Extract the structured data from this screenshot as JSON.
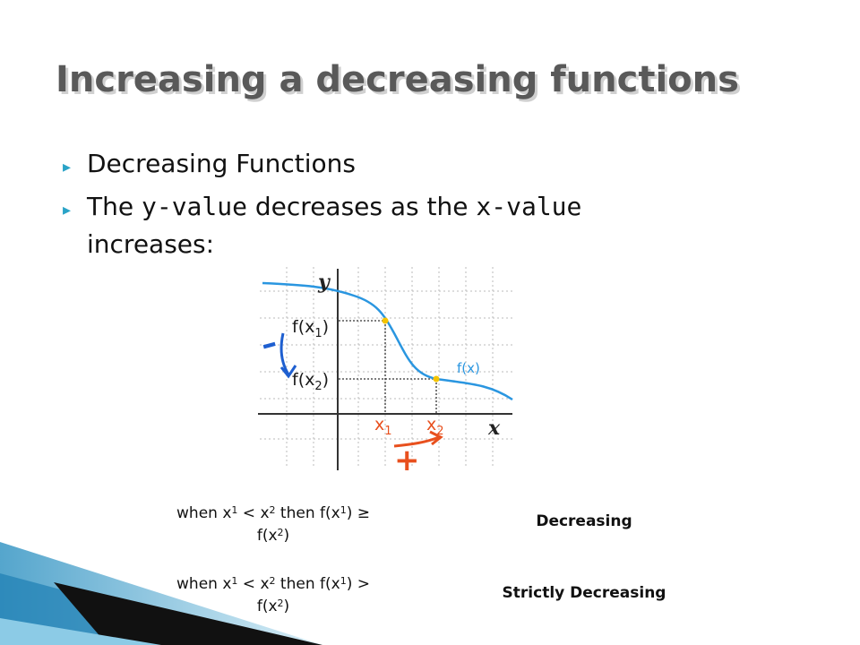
{
  "slide": {
    "title": "Increasing a decreasing functions",
    "bullets": [
      [
        "Decreasing Functions"
      ],
      [
        "The ",
        "y-value",
        " decreases as the ",
        "x-value"
      ],
      [
        "increases:"
      ]
    ],
    "graph": {
      "y_axis_label": "y",
      "x_axis_label": "x",
      "fx1": [
        "f(x",
        "1",
        ")"
      ],
      "fx2": [
        "f(x",
        "2",
        ")"
      ],
      "curve_label": "f(x)",
      "x1": [
        "x",
        "1"
      ],
      "x2": [
        "x",
        "2"
      ],
      "minus": "–",
      "plus": "+"
    },
    "rules": [
      {
        "condition": [
          [
            "when x",
            "1",
            " < x",
            "2",
            " then f(x",
            "1",
            ") ≥"
          ],
          [
            "f(x",
            "2",
            ")"
          ]
        ],
        "name": "Decreasing"
      },
      {
        "condition": [
          [
            "when x",
            "1",
            " < x",
            "2",
            " then f(x",
            "1",
            ") >"
          ],
          [
            "f(x",
            "2",
            ")"
          ]
        ],
        "name": "Strictly Decreasing"
      }
    ]
  }
}
